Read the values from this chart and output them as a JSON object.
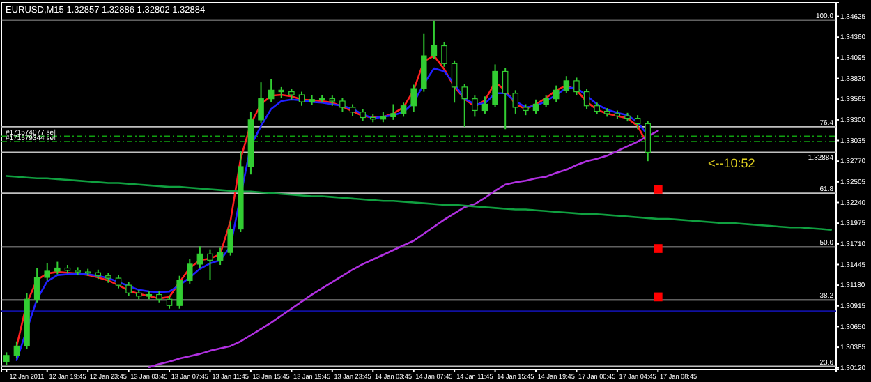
{
  "chart_data": {
    "type": "candlestick",
    "title": "EURUSD,M15  1.32857 1.32886 1.32802 1.32884",
    "color": "#32cd32",
    "categories": [
      null,
      null,
      "12 Jan 2011",
      null,
      null,
      null,
      "12 Jan 19:45",
      null,
      null,
      null,
      "12 Jan 23:45",
      null,
      null,
      null,
      "13 Jan 03:45",
      null,
      null,
      null,
      "13 Jan 07:45",
      null,
      null,
      null,
      "13 Jan 11:45",
      null,
      null,
      null,
      "13 Jan 15:45",
      null,
      null,
      null,
      "13 Jan 19:45",
      null,
      null,
      null,
      "13 Jan 23:45",
      null,
      null,
      null,
      "14 Jan 03:45",
      null,
      null,
      null,
      "14 Jan 07:45",
      null,
      null,
      null,
      "14 Jan 11:45",
      null,
      null,
      null,
      "14 Jan 15:45",
      null,
      null,
      null,
      "14 Jan 19:45",
      null,
      null,
      null,
      "17 Jan 00:45",
      null,
      null,
      null,
      "17 Jan 04:45",
      null,
      null,
      null,
      "17 Jan 08:45",
      null,
      null,
      null,
      null,
      null,
      null,
      null,
      null,
      null,
      null,
      null,
      null,
      null,
      null,
      null
    ],
    "ohlc": [
      [
        1.302,
        1.3032,
        1.3016,
        1.3028
      ],
      [
        1.3028,
        1.3046,
        1.3024,
        1.304
      ],
      [
        1.304,
        1.3108,
        1.3036,
        1.31
      ],
      [
        1.31,
        1.314,
        1.3096,
        1.3128
      ],
      [
        1.3128,
        1.3146,
        1.3124,
        1.3136
      ],
      [
        1.3136,
        1.3148,
        1.3132,
        1.314
      ],
      [
        1.314,
        1.3144,
        1.3133,
        1.3137
      ],
      [
        1.3137,
        1.3141,
        1.3131,
        1.3135
      ],
      [
        1.3135,
        1.3139,
        1.313,
        1.3134
      ],
      [
        1.3134,
        1.3138,
        1.3126,
        1.313
      ],
      [
        1.313,
        1.3134,
        1.3121,
        1.3127
      ],
      [
        1.3127,
        1.3131,
        1.3114,
        1.3118
      ],
      [
        1.3118,
        1.3122,
        1.3104,
        1.3108
      ],
      [
        1.3108,
        1.3112,
        1.31,
        1.3104
      ],
      [
        1.3104,
        1.311,
        1.31,
        1.3106
      ],
      [
        1.3106,
        1.311,
        1.3096,
        1.31
      ],
      [
        1.31,
        1.3104,
        1.3088,
        1.3092
      ],
      [
        1.3092,
        1.313,
        1.3088,
        1.3124
      ],
      [
        1.3124,
        1.3152,
        1.312,
        1.3145
      ],
      [
        1.3145,
        1.3168,
        1.314,
        1.3158
      ],
      [
        1.3158,
        1.3164,
        1.3125,
        1.315
      ],
      [
        1.315,
        1.3166,
        1.3144,
        1.316
      ],
      [
        1.316,
        1.32,
        1.3156,
        1.319
      ],
      [
        1.319,
        1.329,
        1.3186,
        1.327
      ],
      [
        1.327,
        1.334,
        1.326,
        1.333
      ],
      [
        1.333,
        1.3378,
        1.3326,
        1.3357
      ],
      [
        1.3357,
        1.3382,
        1.3353,
        1.3368
      ],
      [
        1.3368,
        1.3372,
        1.3358,
        1.3366
      ],
      [
        1.3366,
        1.337,
        1.3356,
        1.3362
      ],
      [
        1.3362,
        1.3366,
        1.3348,
        1.3353
      ],
      [
        1.3353,
        1.3362,
        1.3349,
        1.3356
      ],
      [
        1.3356,
        1.3362,
        1.3352,
        1.3357
      ],
      [
        1.3357,
        1.3361,
        1.3348,
        1.3354
      ],
      [
        1.3354,
        1.3358,
        1.334,
        1.3346
      ],
      [
        1.3346,
        1.335,
        1.3335,
        1.334
      ],
      [
        1.334,
        1.3344,
        1.3329,
        1.3333
      ],
      [
        1.3333,
        1.3337,
        1.3327,
        1.3331
      ],
      [
        1.3331,
        1.334,
        1.3327,
        1.3334
      ],
      [
        1.3334,
        1.335,
        1.333,
        1.3338
      ],
      [
        1.3338,
        1.3352,
        1.3334,
        1.3348
      ],
      [
        1.3348,
        1.3375,
        1.334,
        1.337
      ],
      [
        1.337,
        1.344,
        1.3366,
        1.3412
      ],
      [
        1.3412,
        1.3457,
        1.3408,
        1.3425
      ],
      [
        1.3425,
        1.343,
        1.3398,
        1.3402
      ],
      [
        1.3402,
        1.3406,
        1.3352,
        1.3372
      ],
      [
        1.3372,
        1.3376,
        1.3321,
        1.3357
      ],
      [
        1.3357,
        1.3361,
        1.3334,
        1.3342
      ],
      [
        1.3342,
        1.336,
        1.3338,
        1.335
      ],
      [
        1.335,
        1.3401,
        1.3346,
        1.3392
      ],
      [
        1.3392,
        1.3396,
        1.3318,
        1.3364
      ],
      [
        1.3364,
        1.3368,
        1.3338,
        1.3346
      ],
      [
        1.3346,
        1.335,
        1.3336,
        1.3342
      ],
      [
        1.3342,
        1.3356,
        1.3338,
        1.335
      ],
      [
        1.335,
        1.3362,
        1.3346,
        1.3357
      ],
      [
        1.3357,
        1.3374,
        1.3353,
        1.3368
      ],
      [
        1.3368,
        1.3386,
        1.3364,
        1.338
      ],
      [
        1.338,
        1.3384,
        1.3362,
        1.3366
      ],
      [
        1.3366,
        1.337,
        1.3344,
        1.3348
      ],
      [
        1.3348,
        1.3352,
        1.3337,
        1.3341
      ],
      [
        1.3341,
        1.3345,
        1.3334,
        1.3338
      ],
      [
        1.3338,
        1.3342,
        1.3331,
        1.3335
      ],
      [
        1.3335,
        1.3339,
        1.3328,
        1.3332
      ],
      [
        1.3332,
        1.3336,
        1.3318,
        1.3325
      ],
      [
        1.3325,
        1.3329,
        1.3277,
        1.32884
      ],
      null,
      null,
      null,
      null,
      null,
      null,
      null,
      null,
      null,
      null,
      null,
      null,
      null,
      null,
      null,
      null,
      null,
      null
    ],
    "series": [
      {
        "type": "line",
        "color": "#ff2020",
        "values": [
          null,
          1.304,
          1.3095,
          1.3125,
          1.3133,
          1.3135,
          1.3134,
          1.3133,
          1.3131,
          1.3128,
          1.3124,
          1.3118,
          1.3111,
          1.3107,
          1.3104,
          1.3101,
          1.3103,
          1.3122,
          1.314,
          1.315,
          1.3152,
          1.3158,
          1.32,
          1.328,
          1.3325,
          1.335,
          1.3361,
          1.3362,
          1.336,
          1.3356,
          1.3355,
          1.3354,
          1.3352,
          1.3347,
          1.3341,
          1.3335,
          1.3333,
          1.3334,
          1.3338,
          1.3346,
          1.3368,
          1.3405,
          1.3412,
          1.3395,
          1.3372,
          1.3357,
          1.3347,
          1.3355,
          1.3378,
          1.3368,
          1.335,
          1.3344,
          1.335,
          1.3358,
          1.3368,
          1.3374,
          1.3368,
          1.3353,
          1.3343,
          1.3338,
          1.3335,
          1.3332,
          1.3322,
          1.3298,
          null,
          null,
          null,
          null,
          null,
          null,
          null,
          null,
          null,
          null,
          null,
          null,
          null,
          null,
          null,
          null,
          null,
          null
        ]
      },
      {
        "type": "line",
        "color": "#2020ff",
        "values": [
          null,
          1.3022,
          null,
          1.31,
          1.3123,
          1.3131,
          1.3132,
          1.3133,
          1.3132,
          1.313,
          1.3127,
          1.3122,
          1.3117,
          1.3112,
          1.311,
          1.3109,
          1.311,
          1.3118,
          1.3128,
          1.3139,
          1.3146,
          1.315,
          1.3168,
          null,
          1.3297,
          1.3322,
          1.3344,
          1.3354,
          1.3356,
          1.3355,
          1.3353,
          1.3352,
          1.335,
          1.3348,
          1.3344,
          1.3337,
          1.3332,
          1.3334,
          1.3336,
          1.334,
          1.3352,
          1.3376,
          1.3396,
          1.3392,
          1.3376,
          1.3357,
          1.335,
          1.3351,
          1.3364,
          1.3364,
          1.3354,
          1.3346,
          1.3348,
          1.3354,
          1.3362,
          1.3371,
          1.3371,
          1.3361,
          1.335,
          1.3343,
          1.3339,
          1.3336,
          1.3327,
          1.331,
          null,
          null,
          null,
          null,
          null,
          null,
          null,
          null,
          null,
          null,
          null,
          null,
          null,
          null,
          null,
          null,
          null,
          null
        ]
      },
      {
        "type": "line",
        "color": "#b030e0",
        "values": [
          null,
          null,
          null,
          null,
          null,
          null,
          null,
          null,
          null,
          null,
          null,
          null,
          null,
          null,
          1.3013,
          1.3017,
          1.302,
          1.3024,
          1.3027,
          1.303,
          1.3034,
          1.3037,
          1.304,
          1.3046,
          1.3054,
          1.3062,
          1.307,
          1.3079,
          1.3088,
          1.3097,
          1.3106,
          1.3114,
          1.3122,
          1.313,
          1.3138,
          1.3145,
          1.3151,
          1.3157,
          1.3163,
          1.3169,
          1.3175,
          1.3184,
          1.3193,
          1.3202,
          1.321,
          1.3218,
          1.3222,
          1.323,
          1.3239,
          1.3247,
          1.325,
          1.3252,
          1.3255,
          1.3257,
          1.3262,
          1.3266,
          1.3272,
          1.3277,
          1.328,
          1.3284,
          1.329,
          1.3296,
          1.3302,
          1.3309,
          1.3316,
          null,
          null,
          null,
          null,
          null,
          null,
          null,
          null,
          null,
          null,
          null,
          null,
          null,
          null,
          null,
          null,
          null
        ]
      },
      {
        "type": "line",
        "color": "#10a040",
        "values": [
          1.3258,
          1.3257,
          1.3256,
          1.3255,
          1.3255,
          1.3254,
          1.3253,
          1.3252,
          1.3251,
          1.325,
          1.3249,
          1.3249,
          1.3248,
          1.3247,
          1.3246,
          1.3245,
          1.3244,
          1.3244,
          1.3243,
          1.3242,
          1.3241,
          1.324,
          1.3239,
          1.3238,
          1.3238,
          1.3237,
          1.3236,
          1.3235,
          1.3234,
          1.3233,
          1.3232,
          1.3232,
          1.3231,
          1.323,
          1.3229,
          1.3228,
          1.3227,
          1.3226,
          1.3226,
          1.3225,
          1.3224,
          1.3223,
          1.3222,
          1.3221,
          1.3221,
          1.322,
          1.3219,
          1.3218,
          1.3217,
          1.3216,
          1.3215,
          1.3215,
          1.3214,
          1.3213,
          1.3212,
          1.3211,
          1.321,
          1.3209,
          1.3209,
          1.3208,
          1.3207,
          1.3206,
          1.3205,
          1.3204,
          1.3203,
          1.3203,
          1.3202,
          1.3201,
          1.32,
          1.3199,
          1.3198,
          1.3198,
          1.3197,
          1.3196,
          1.3195,
          1.3194,
          1.3193,
          1.3192,
          1.3192,
          1.3191,
          1.319,
          1.3189
        ]
      },
      {
        "type": "scatter",
        "marker": "square",
        "color": "#ff0000",
        "values": [
          null,
          null,
          null,
          null,
          null,
          null,
          null,
          null,
          null,
          null,
          null,
          null,
          null,
          null,
          null,
          null,
          null,
          null,
          null,
          null,
          null,
          null,
          null,
          null,
          null,
          null,
          null,
          null,
          null,
          null,
          null,
          null,
          null,
          null,
          null,
          null,
          null,
          null,
          null,
          null,
          null,
          null,
          null,
          null,
          null,
          null,
          null,
          null,
          null,
          null,
          null,
          null,
          null,
          null,
          null,
          null,
          null,
          null,
          null,
          null,
          null,
          null,
          null,
          null,
          1.3241,
          null,
          null,
          null,
          null,
          null,
          null,
          null,
          null,
          null,
          null,
          null,
          null,
          null,
          null,
          null,
          null,
          null
        ]
      },
      {
        "type": "scatter",
        "marker": "square",
        "color": "#ff0000",
        "values": [
          null,
          null,
          null,
          null,
          null,
          null,
          null,
          null,
          null,
          null,
          null,
          null,
          null,
          null,
          null,
          null,
          null,
          null,
          null,
          null,
          null,
          null,
          null,
          null,
          null,
          null,
          null,
          null,
          null,
          null,
          null,
          null,
          null,
          null,
          null,
          null,
          null,
          null,
          null,
          null,
          null,
          null,
          null,
          null,
          null,
          null,
          null,
          null,
          null,
          null,
          null,
          null,
          null,
          null,
          null,
          null,
          null,
          null,
          null,
          null,
          null,
          null,
          null,
          null,
          1.3165,
          null,
          null,
          null,
          null,
          null,
          null,
          null,
          null,
          null,
          null,
          null,
          null,
          null,
          null,
          null,
          null,
          null
        ]
      },
      {
        "type": "scatter",
        "marker": "square",
        "color": "#ff0000",
        "values": [
          null,
          null,
          null,
          null,
          null,
          null,
          null,
          null,
          null,
          null,
          null,
          null,
          null,
          null,
          null,
          null,
          null,
          null,
          null,
          null,
          null,
          null,
          null,
          null,
          null,
          null,
          null,
          null,
          null,
          null,
          null,
          null,
          null,
          null,
          null,
          null,
          null,
          null,
          null,
          null,
          null,
          null,
          null,
          null,
          null,
          null,
          null,
          null,
          null,
          null,
          null,
          null,
          null,
          null,
          null,
          null,
          null,
          null,
          null,
          null,
          null,
          null,
          null,
          null,
          1.3103,
          null,
          null,
          null,
          null,
          null,
          null,
          null,
          null,
          null,
          null,
          null,
          null,
          null,
          null,
          null,
          null,
          null
        ]
      }
    ],
    "ref_lines": [
      {
        "axis": "y",
        "value": 1.3458,
        "color": "#c0c0c0"
      },
      {
        "axis": "y",
        "value": 1.3321,
        "color": "#c0c0c0"
      },
      {
        "axis": "y",
        "value": 1.3236,
        "color": "#c0c0c0"
      },
      {
        "axis": "y",
        "value": 1.3167,
        "color": "#c0c0c0"
      },
      {
        "axis": "y",
        "value": 1.3099,
        "color": "#c0c0c0"
      },
      {
        "axis": "y",
        "value": 1.3014,
        "color": "#c0c0c0"
      },
      {
        "axis": "y",
        "value": 1.3309,
        "label": "#171574077 sell",
        "color": "#10a010",
        "line_style": "dashed"
      },
      {
        "axis": "y",
        "value": 1.3302,
        "label": "#171579344 sell",
        "color": "#10a010",
        "line_style": "dashed"
      },
      {
        "axis": "y",
        "value": 1.32884,
        "label": "1.32884",
        "color": "#c0c0c0"
      },
      {
        "axis": "y",
        "value": 1.3085,
        "color": "#1010a0"
      }
    ],
    "annotations": [
      "<--10:52",
      {
        "text": "100.0",
        "y": 1.3458
      },
      {
        "text": "76.4",
        "y": 1.3321
      },
      {
        "text": "61.8",
        "y": 1.3236
      },
      {
        "text": "50.0",
        "y": 1.3167
      },
      {
        "text": "38.2",
        "y": 1.3099
      },
      {
        "text": "23.6",
        "y": 1.3014
      }
    ],
    "ylim": [
      1.301,
      1.348
    ],
    "yticks": [
      {
        "value": 1.3012,
        "label": "1.30120"
      },
      {
        "value": 1.30385,
        "label": "1.30385"
      },
      {
        "value": 1.3065,
        "label": "1.30650"
      },
      {
        "value": 1.30915,
        "label": "1.30915"
      },
      {
        "value": 1.3118,
        "label": "1.31180"
      },
      {
        "value": 1.31445,
        "label": "1.31445"
      },
      {
        "value": 1.3171,
        "label": "1.31710"
      },
      {
        "value": 1.31975,
        "label": "1.31975"
      },
      {
        "value": 1.3224,
        "label": "1.32240"
      },
      {
        "value": 1.32505,
        "label": "1.32505"
      },
      {
        "value": 1.3277,
        "label": "1.32770"
      },
      {
        "value": 1.33035,
        "label": "1.33035"
      },
      {
        "value": 1.333,
        "label": "1.33300"
      },
      {
        "value": 1.33565,
        "label": "1.33565"
      },
      {
        "value": 1.3383,
        "label": "1.33830"
      },
      {
        "value": 1.34095,
        "label": "1.34095"
      },
      {
        "value": 1.3436,
        "label": "1.34360"
      },
      {
        "value": 1.34625,
        "label": "1.34625"
      }
    ]
  }
}
